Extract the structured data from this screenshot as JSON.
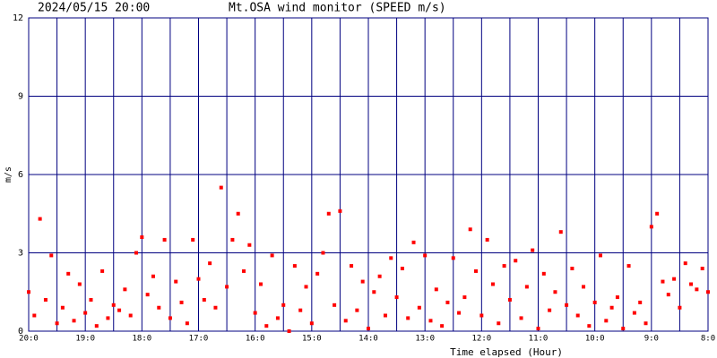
{
  "chart_data": {
    "type": "scatter",
    "date": "2024/05/15 20:00",
    "title": "Mt.OSA wind monitor (SPEED m/s)",
    "ylabel": "m/s",
    "xlabel": "Time elapsed (Hour)",
    "color": "#ff0000",
    "grid_color": "#000080",
    "grid": true,
    "xlim": [
      0,
      12
    ],
    "ylim": [
      0,
      12
    ],
    "yticks": [
      0,
      3,
      6,
      9,
      12
    ],
    "xticks": [
      {
        "value": 0,
        "label": "20:0"
      },
      {
        "value": 1,
        "label": "19:0"
      },
      {
        "value": 2,
        "label": "18:0"
      },
      {
        "value": 3,
        "label": "17:0"
      },
      {
        "value": 4,
        "label": "16:0"
      },
      {
        "value": 5,
        "label": "15:0"
      },
      {
        "value": 6,
        "label": "14:0"
      },
      {
        "value": 7,
        "label": "13:0"
      },
      {
        "value": 8,
        "label": "12:0"
      },
      {
        "value": 9,
        "label": "11:0"
      },
      {
        "value": 10,
        "label": "10:0"
      },
      {
        "value": 11,
        "label": "9:0"
      },
      {
        "value": 12,
        "label": "8:0"
      }
    ],
    "xminor": [
      0.5,
      1.5,
      2.5,
      3.5,
      4.5,
      5.5,
      6.5,
      7.5,
      8.5,
      9.5,
      10.5,
      11.5
    ],
    "x": [
      0,
      0.1,
      0.2,
      0.3,
      0.4,
      0.5,
      0.6,
      0.7,
      0.8,
      0.9,
      1,
      1.1,
      1.2,
      1.3,
      1.4,
      1.5,
      1.6,
      1.7,
      1.8,
      1.9,
      2,
      2.1,
      2.2,
      2.3,
      2.4,
      2.5,
      2.6,
      2.7,
      2.8,
      2.9,
      3,
      3.1,
      3.2,
      3.3,
      3.4,
      3.5,
      3.6,
      3.7,
      3.8,
      3.9,
      4,
      4.1,
      4.2,
      4.3,
      4.4,
      4.5,
      4.6,
      4.7,
      4.8,
      4.9,
      5,
      5.1,
      5.2,
      5.3,
      5.4,
      5.5,
      5.6,
      5.7,
      5.8,
      5.9,
      6,
      6.1,
      6.2,
      6.3,
      6.4,
      6.5,
      6.6,
      6.7,
      6.8,
      6.9,
      7,
      7.1,
      7.2,
      7.3,
      7.4,
      7.5,
      7.6,
      7.7,
      7.8,
      7.9,
      8,
      8.1,
      8.2,
      8.3,
      8.4,
      8.5,
      8.6,
      8.7,
      8.8,
      8.9,
      9,
      9.1,
      9.2,
      9.3,
      9.4,
      9.5,
      9.6,
      9.7,
      9.8,
      9.9,
      10,
      10.1,
      10.2,
      10.3,
      10.4,
      10.5,
      10.6,
      10.7,
      10.8,
      10.9,
      11,
      11.1,
      11.2,
      11.3,
      11.4,
      11.5,
      11.6,
      11.7,
      11.8,
      11.9,
      12
    ],
    "values": [
      1.5,
      0.6,
      4.3,
      1.2,
      2.9,
      0.3,
      0.9,
      2.2,
      0.4,
      1.8,
      0.7,
      1.2,
      0.2,
      2.3,
      0.5,
      1.0,
      0.8,
      1.6,
      0.6,
      3.0,
      3.6,
      1.4,
      2.1,
      0.9,
      3.5,
      0.5,
      1.9,
      1.1,
      0.3,
      3.5,
      2.0,
      1.2,
      2.6,
      0.9,
      5.5,
      1.7,
      3.5,
      4.5,
      2.3,
      3.3,
      0.7,
      1.8,
      0.2,
      2.9,
      0.5,
      1.0,
      0.0,
      2.5,
      0.8,
      1.7,
      0.3,
      2.2,
      3.0,
      4.5,
      1.0,
      4.6,
      0.4,
      2.5,
      0.8,
      1.9,
      0.1,
      1.5,
      2.1,
      0.6,
      2.8,
      1.3,
      2.4,
      0.5,
      3.4,
      0.9,
      2.9,
      0.4,
      1.6,
      0.2,
      1.1,
      2.8,
      0.7,
      1.3,
      3.9,
      2.3,
      0.6,
      3.5,
      1.8,
      0.3,
      2.5,
      1.2,
      2.7,
      0.5,
      1.7,
      3.1,
      0.1,
      2.2,
      0.8,
      1.5,
      3.8,
      1.0,
      2.4,
      0.6,
      1.7,
      0.2,
      1.1,
      2.9,
      0.4,
      0.9,
      1.3,
      0.1,
      2.5,
      0.7,
      1.1,
      0.3,
      4.0,
      4.5,
      1.9,
      1.4,
      2.0,
      0.9,
      2.6,
      1.8,
      1.6,
      2.4,
      1.5
    ]
  }
}
